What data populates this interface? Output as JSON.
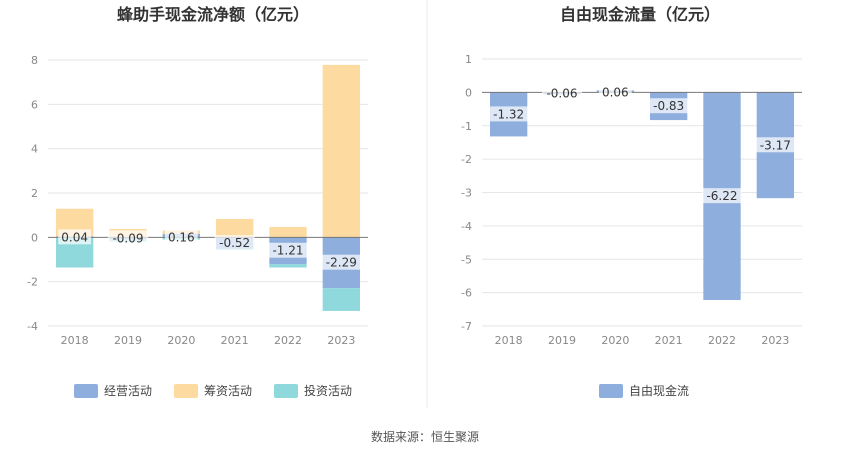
{
  "charts": [
    {
      "title": "蜂助手现金流净额（亿元）",
      "type": "bar",
      "categories": [
        "2018",
        "2019",
        "2020",
        "2021",
        "2022",
        "2023"
      ],
      "ylim": [
        -4,
        8
      ],
      "yticks": [
        "-4",
        "-2",
        "0",
        "2",
        "4",
        "6",
        "8"
      ],
      "series": [
        {
          "name": "经营活动",
          "color": "#8eaedd",
          "values": [
            0.04,
            -0.09,
            0.16,
            -0.52,
            -1.21,
            -2.29
          ]
        },
        {
          "name": "筹资活动",
          "color": "#fddaa0",
          "values": [
            1.25,
            0.38,
            0.15,
            0.83,
            0.47,
            7.78
          ]
        },
        {
          "name": "投资活动",
          "color": "#8fd8db",
          "values": [
            -1.36,
            -0.1,
            -0.1,
            -0.02,
            -0.15,
            -1.03
          ]
        }
      ],
      "data_labels": [
        "0.04",
        "-0.09",
        "0.16",
        "-0.52",
        "-1.21",
        "-2.29"
      ],
      "stacked": true,
      "grid": true,
      "legend": "bottom"
    },
    {
      "title": "自由现金流量（亿元）",
      "type": "bar",
      "categories": [
        "2018",
        "2019",
        "2020",
        "2021",
        "2022",
        "2023"
      ],
      "ylim": [
        -7,
        1
      ],
      "yticks": [
        "-7",
        "-6",
        "-5",
        "-4",
        "-3",
        "-2",
        "-1",
        "0",
        "1"
      ],
      "series": [
        {
          "name": "自由现金流",
          "color": "#8eaedd",
          "values": [
            -1.32,
            -0.06,
            0.06,
            -0.83,
            -6.22,
            -3.17
          ]
        }
      ],
      "data_labels": [
        "-1.32",
        "-0.06",
        "0.06",
        "-0.83",
        "-6.22",
        "-3.17"
      ],
      "grid": true,
      "legend": "bottom"
    }
  ],
  "footer": "数据来源：恒生聚源"
}
